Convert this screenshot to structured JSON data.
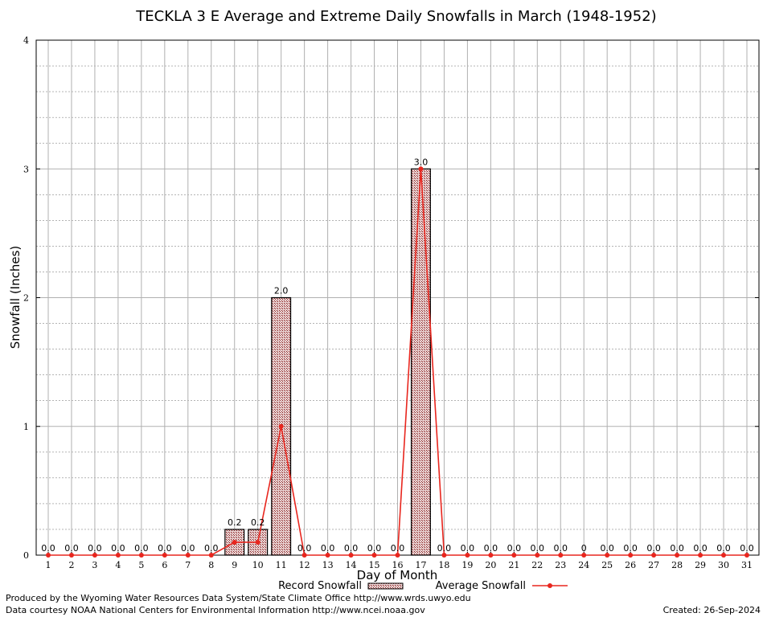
{
  "chart_data": {
    "type": "bar",
    "title": "TECKLA 3 E Average and Extreme Daily Snowfalls in March (1948-1952)",
    "xlabel": "Day of Month",
    "ylabel": "Snowfall (Inches)",
    "ylim": [
      0,
      4
    ],
    "yticks": [
      "0",
      "1",
      "2",
      "3",
      "4"
    ],
    "categories": [
      "1",
      "2",
      "3",
      "4",
      "5",
      "6",
      "7",
      "8",
      "9",
      "10",
      "11",
      "12",
      "13",
      "14",
      "15",
      "16",
      "17",
      "18",
      "19",
      "20",
      "21",
      "22",
      "23",
      "24",
      "25",
      "26",
      "27",
      "28",
      "29",
      "30",
      "31"
    ],
    "grid": true,
    "legend_position": "bottom",
    "series": [
      {
        "name": "Record Snowfall",
        "kind": "bar",
        "color": "#b22222",
        "values": [
          0,
          0,
          0,
          0,
          0,
          0,
          0,
          0,
          0.2,
          0.2,
          2.0,
          0,
          0,
          0,
          0,
          0,
          3.0,
          0,
          0,
          0,
          0,
          0,
          0,
          0,
          0,
          0,
          0,
          0,
          0,
          0,
          0
        ],
        "labels": [
          "0.0",
          "0.0",
          "0.0",
          "0.0",
          "0.0",
          "0.0",
          "0.0",
          "0.0",
          "0.2",
          "0.2",
          "2.0",
          "0.0",
          "0.0",
          "0.0",
          "0.0",
          "0.0",
          "3.0",
          "0.0",
          "0.0",
          "0.0",
          "0.0",
          "0.0",
          "0.0",
          "0",
          "0.0",
          "0.0",
          "0.0",
          "0.0",
          "0.0",
          "0.0",
          "0.0"
        ]
      },
      {
        "name": "Average Snowfall",
        "kind": "line",
        "color": "#e8261e",
        "values": [
          0,
          0,
          0,
          0,
          0,
          0,
          0,
          0,
          0.1,
          0.1,
          1.0,
          0,
          0,
          0,
          0,
          0,
          3.0,
          0,
          0,
          0,
          0,
          0,
          0,
          0,
          0,
          0,
          0,
          0,
          0,
          0,
          0
        ]
      }
    ]
  },
  "footer": {
    "produced_by": "Produced by the Wyoming Water Resources Data System/State Climate Office http://www.wrds.uwyo.edu",
    "data_courtesy": "Data courtesy NOAA National Centers for Environmental Information http://www.ncei.noaa.gov",
    "created": "Created:  26-Sep-2024"
  }
}
